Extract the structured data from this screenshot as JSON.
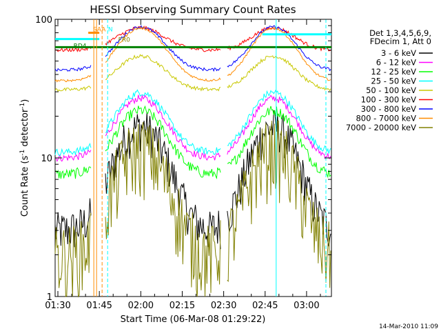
{
  "chart_data": {
    "type": "line",
    "title": "HESSI Observing Summary Count Rates",
    "xlabel": "Start Time (06-Mar-08 01:29:22)",
    "ylabel": "Count Rate (s",
    "ylabel_sup": "-1",
    "ylabel_tail": " detector",
    "ylabel_sup2": "-1",
    "ylabel_end": ")",
    "y_scale": "log",
    "ylim": [
      1,
      100
    ],
    "y_ticks": [
      {
        "value": 1,
        "label": "1"
      },
      {
        "value": 10,
        "label": "10"
      },
      {
        "value": 100,
        "label": "100"
      }
    ],
    "xlim": [
      "01:29",
      "03:09"
    ],
    "x_ticks": [
      {
        "value": "01:30",
        "label": "01:30"
      },
      {
        "value": "01:45",
        "label": "01:45"
      },
      {
        "value": "02:00",
        "label": "02:00"
      },
      {
        "value": "02:15",
        "label": "02:15"
      },
      {
        "value": "02:30",
        "label": "02:30"
      },
      {
        "value": "02:45",
        "label": "02:45"
      },
      {
        "value": "03:00",
        "label": "03:00"
      }
    ],
    "legend_header": [
      "Det 1,3,4,5,6,9,",
      "FDecim 1, Att 0"
    ],
    "legend_placement": "right",
    "series": [
      {
        "name": "3 - 6 keV",
        "color": "#000000",
        "base": 3.0,
        "amp": 4.6,
        "noise": 0.35
      },
      {
        "name": "6 - 12 keV",
        "color": "#ff00ff",
        "base": 10.0,
        "amp": 1.7,
        "noise": 0.06
      },
      {
        "name": "12 - 25 keV",
        "color": "#00ff00",
        "base": 7.6,
        "amp": 1.9,
        "noise": 0.09
      },
      {
        "name": "25 - 50 keV",
        "color": "#00ffff",
        "base": 11.0,
        "amp": 1.7,
        "noise": 0.06
      },
      {
        "name": "50 - 100 keV",
        "color": "#c8c800",
        "base": 31.0,
        "amp": 0.75,
        "noise": 0.03
      },
      {
        "name": "100 - 300 keV",
        "color": "#ff0000",
        "base": 60.0,
        "amp": 0.45,
        "noise": 0.03
      },
      {
        "name": "300 - 800 keV",
        "color": "#0000ff",
        "base": 43.0,
        "amp": 1.05,
        "noise": 0.025
      },
      {
        "name": "800 - 7000 keV",
        "color": "#ff8c00",
        "base": 36.0,
        "amp": 1.4,
        "noise": 0.02
      },
      {
        "name": "7000 - 20000 keV",
        "color": "#808000",
        "base": 2.0,
        "amp": 5.0,
        "noise": 0.6
      }
    ],
    "annotations": [
      {
        "text": "SAA",
        "color": "#ff8c00",
        "t": "01:45"
      },
      {
        "text": "N",
        "color": "#00ffff",
        "t": "01:49"
      },
      {
        "text": "FR0",
        "color": "#808000",
        "t": "01:54"
      },
      {
        "text": "RD4",
        "color": "#008000",
        "t": "01:38"
      }
    ],
    "timestamp": "14-Mar-2010 11:09"
  }
}
